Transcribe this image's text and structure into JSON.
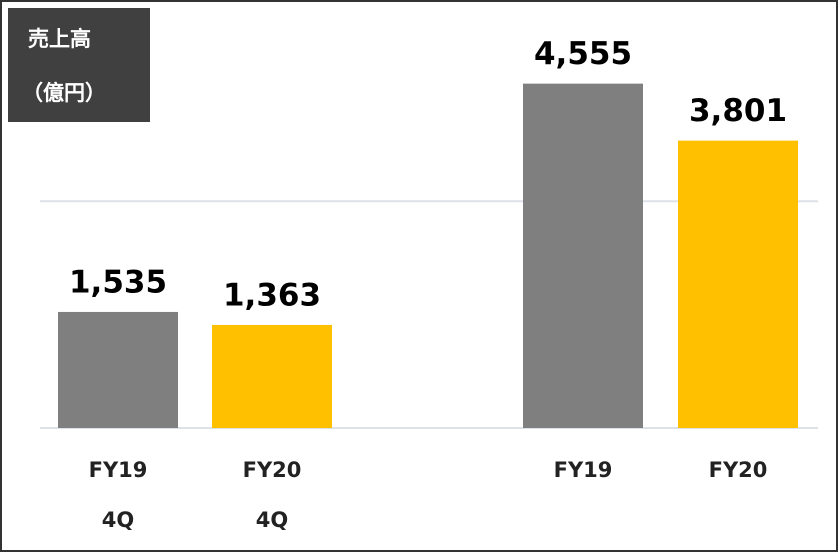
{
  "chart_data": {
    "type": "bar",
    "title": [
      "売上高",
      "（億円）"
    ],
    "categories": [
      [
        "FY19",
        "4Q"
      ],
      [
        "FY20",
        "4Q"
      ],
      [
        "FY19"
      ],
      [
        "FY20"
      ]
    ],
    "values": [
      1535,
      1363,
      4555,
      3801
    ],
    "value_labels": [
      "1,535",
      "1,363",
      "4,555",
      "3,801"
    ],
    "colors": [
      "#7f7f7f",
      "#ffc000",
      "#7f7f7f",
      "#ffc000"
    ],
    "ylim": [
      0,
      5000
    ],
    "yticks": [
      0,
      3000
    ],
    "grid": true
  }
}
